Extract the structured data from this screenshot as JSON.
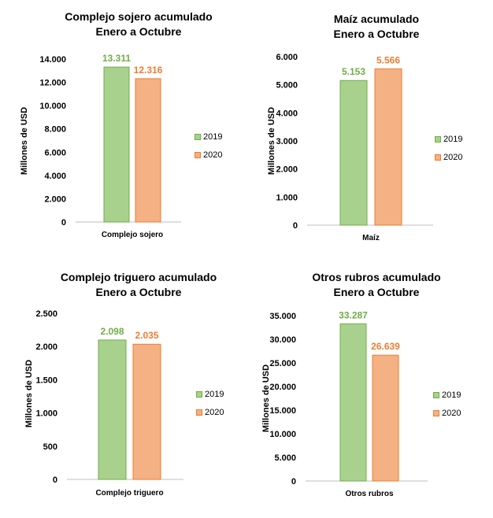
{
  "colors": {
    "s2019_fill": "#a9d18e",
    "s2019_stroke": "#70ad47",
    "s2019_label": "#70ad47",
    "s2020_fill": "#f4b183",
    "s2020_stroke": "#ed7d31",
    "s2020_label": "#ed7d31"
  },
  "legend": {
    "series": [
      "2019",
      "2020"
    ]
  },
  "chart_data": [
    {
      "type": "bar",
      "title_line1": "Complejo sojero acumulado",
      "title_line2": "Enero a Octubre",
      "ylabel": "Millones de USD",
      "categories": [
        "Complejo sojero"
      ],
      "series": [
        {
          "name": "2019",
          "values": [
            13311
          ]
        },
        {
          "name": "2020",
          "values": [
            12316
          ]
        }
      ],
      "value_labels": [
        "13.311",
        "12.316"
      ],
      "ylim": [
        0,
        14000
      ],
      "yticks": [
        0,
        2000,
        4000,
        6000,
        8000,
        10000,
        12000,
        14000
      ],
      "ytick_labels": [
        "0",
        "2.000",
        "4.000",
        "6.000",
        "8.000",
        "10.000",
        "12.000",
        "14.000"
      ],
      "grid": false,
      "legend_position": "right"
    },
    {
      "type": "bar",
      "title_line1": "Maíz acumulado",
      "title_line2": "Enero a Octubre",
      "ylabel": "Millones de USD",
      "categories": [
        "Maíz"
      ],
      "series": [
        {
          "name": "2019",
          "values": [
            5153
          ]
        },
        {
          "name": "2020",
          "values": [
            5566
          ]
        }
      ],
      "value_labels": [
        "5.153",
        "5.566"
      ],
      "ylim": [
        0,
        6000
      ],
      "yticks": [
        0,
        1000,
        2000,
        3000,
        4000,
        5000,
        6000
      ],
      "ytick_labels": [
        "0",
        "1.000",
        "2.000",
        "3.000",
        "4.000",
        "5.000",
        "6.000"
      ],
      "grid": false,
      "legend_position": "right"
    },
    {
      "type": "bar",
      "title_line1": "Complejo triguero acumulado",
      "title_line2": "Enero a Octubre",
      "ylabel": "Millones de USD",
      "categories": [
        "Complejo triguero"
      ],
      "series": [
        {
          "name": "2019",
          "values": [
            2098
          ]
        },
        {
          "name": "2020",
          "values": [
            2035
          ]
        }
      ],
      "value_labels": [
        "2.098",
        "2.035"
      ],
      "ylim": [
        0,
        2500
      ],
      "yticks": [
        0,
        500,
        1000,
        1500,
        2000,
        2500
      ],
      "ytick_labels": [
        "0",
        "500",
        "1.000",
        "1.500",
        "2.000",
        "2.500"
      ],
      "grid": false,
      "legend_position": "right"
    },
    {
      "type": "bar",
      "title_line1": "Otros rubros acumulado",
      "title_line2": "Enero a Octubre",
      "ylabel": "Millones de USD",
      "categories": [
        "Otros rubros"
      ],
      "series": [
        {
          "name": "2019",
          "values": [
            33287
          ]
        },
        {
          "name": "2020",
          "values": [
            26639
          ]
        }
      ],
      "value_labels": [
        "33.287",
        "26.639"
      ],
      "ylim": [
        0,
        35000
      ],
      "yticks": [
        0,
        5000,
        10000,
        15000,
        20000,
        25000,
        30000,
        35000
      ],
      "ytick_labels": [
        "0",
        "5.000",
        "10.000",
        "15.000",
        "20.000",
        "25.000",
        "30.000",
        "35.000"
      ],
      "grid": false,
      "legend_position": "right"
    }
  ]
}
